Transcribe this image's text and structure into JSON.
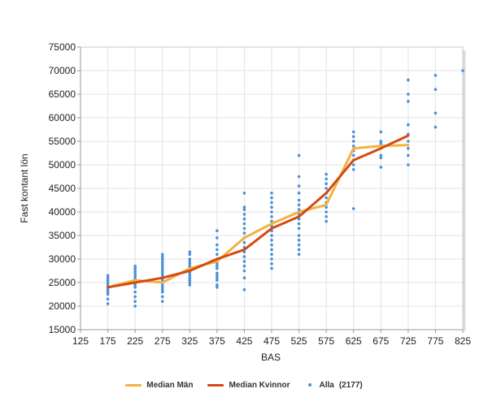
{
  "chart_data": {
    "type": "line",
    "xlabel": "BAS",
    "ylabel": "Fast kontant lön",
    "xlim": [
      125,
      825
    ],
    "ylim": [
      15000,
      75000
    ],
    "xticks": [
      125,
      175,
      225,
      275,
      325,
      375,
      425,
      475,
      525,
      575,
      625,
      675,
      725,
      775,
      825
    ],
    "yticks": [
      15000,
      20000,
      25000,
      30000,
      35000,
      40000,
      45000,
      50000,
      55000,
      60000,
      65000,
      70000,
      75000
    ],
    "grid": true,
    "legend_position": "bottom",
    "series": [
      {
        "name": "Median Män",
        "type": "line",
        "color": "#F5B041",
        "x": [
          175,
          225,
          275,
          325,
          375,
          425,
          475,
          525,
          575,
          625,
          675,
          725
        ],
        "y": [
          24000,
          25500,
          25000,
          28000,
          29500,
          34500,
          37500,
          40000,
          41500,
          53500,
          54000,
          54200
        ]
      },
      {
        "name": "Median Kvinnor",
        "type": "line",
        "color": "#D44A12",
        "x": [
          175,
          225,
          275,
          325,
          375,
          425,
          475,
          525,
          575,
          625,
          675,
          725
        ],
        "y": [
          24000,
          25000,
          26000,
          27500,
          30000,
          32000,
          36500,
          39000,
          44000,
          51000,
          53500,
          56200
        ]
      },
      {
        "name": "Alla",
        "count_label": "(2177)",
        "type": "scatter",
        "color": "#4A90D9",
        "points": [
          {
            "x": 175,
            "y": [
              20500,
              21500,
              22500,
              23000,
              23500,
              24000,
              24500,
              25000,
              25500,
              26000,
              26500
            ]
          },
          {
            "x": 225,
            "y": [
              20000,
              21000,
              22000,
              23000,
              24000,
              24500,
              25000,
              25500,
              26000,
              26500,
              27000,
              27500,
              28000,
              28500
            ]
          },
          {
            "x": 275,
            "y": [
              21000,
              22000,
              23000,
              23500,
              24000,
              24500,
              25000,
              25500,
              26000,
              26500,
              27000,
              27500,
              28000,
              28500,
              29000,
              29500,
              30000,
              30500,
              31000
            ]
          },
          {
            "x": 325,
            "y": [
              24500,
              25000,
              25500,
              26000,
              26500,
              27000,
              27500,
              28000,
              28500,
              29000,
              29500,
              30000,
              31000,
              31500
            ]
          },
          {
            "x": 375,
            "y": [
              24000,
              24500,
              25500,
              26000,
              26500,
              27000,
              28000,
              28500,
              29000,
              29500,
              30000,
              31000,
              32000,
              33000,
              34500,
              36000
            ]
          },
          {
            "x": 425,
            "y": [
              23500,
              26000,
              27500,
              28500,
              29500,
              30500,
              31500,
              32500,
              33500,
              34500,
              35500,
              36500,
              37500,
              38500,
              39500,
              40500,
              41000,
              44000
            ]
          },
          {
            "x": 475,
            "y": [
              28000,
              29000,
              30000,
              31000,
              32000,
              33000,
              34000,
              35000,
              36000,
              37000,
              38000,
              39000,
              40000,
              41000,
              42000,
              43000,
              44000
            ]
          },
          {
            "x": 525,
            "y": [
              31000,
              32000,
              33000,
              34000,
              35000,
              36500,
              37500,
              38500,
              39500,
              40500,
              41500,
              42500,
              44000,
              45500,
              47500,
              52000
            ]
          },
          {
            "x": 575,
            "y": [
              38000,
              39000,
              40000,
              41000,
              42000,
              43000,
              44000,
              45000,
              46000,
              47000,
              48000
            ]
          },
          {
            "x": 625,
            "y": [
              40700,
              49000,
              50000,
              51000,
              52000,
              53000,
              54000,
              55000,
              56000,
              57000
            ]
          },
          {
            "x": 675,
            "y": [
              49500,
              51500,
              52000,
              53500,
              54500,
              55000,
              57000
            ]
          },
          {
            "x": 725,
            "y": [
              50000,
              52000,
              53500,
              55000,
              56500,
              58500,
              63500,
              65000,
              68000
            ]
          },
          {
            "x": 775,
            "y": [
              58000,
              61000,
              66000,
              69000
            ]
          },
          {
            "x": 825,
            "y": [
              70000
            ]
          }
        ]
      }
    ]
  }
}
